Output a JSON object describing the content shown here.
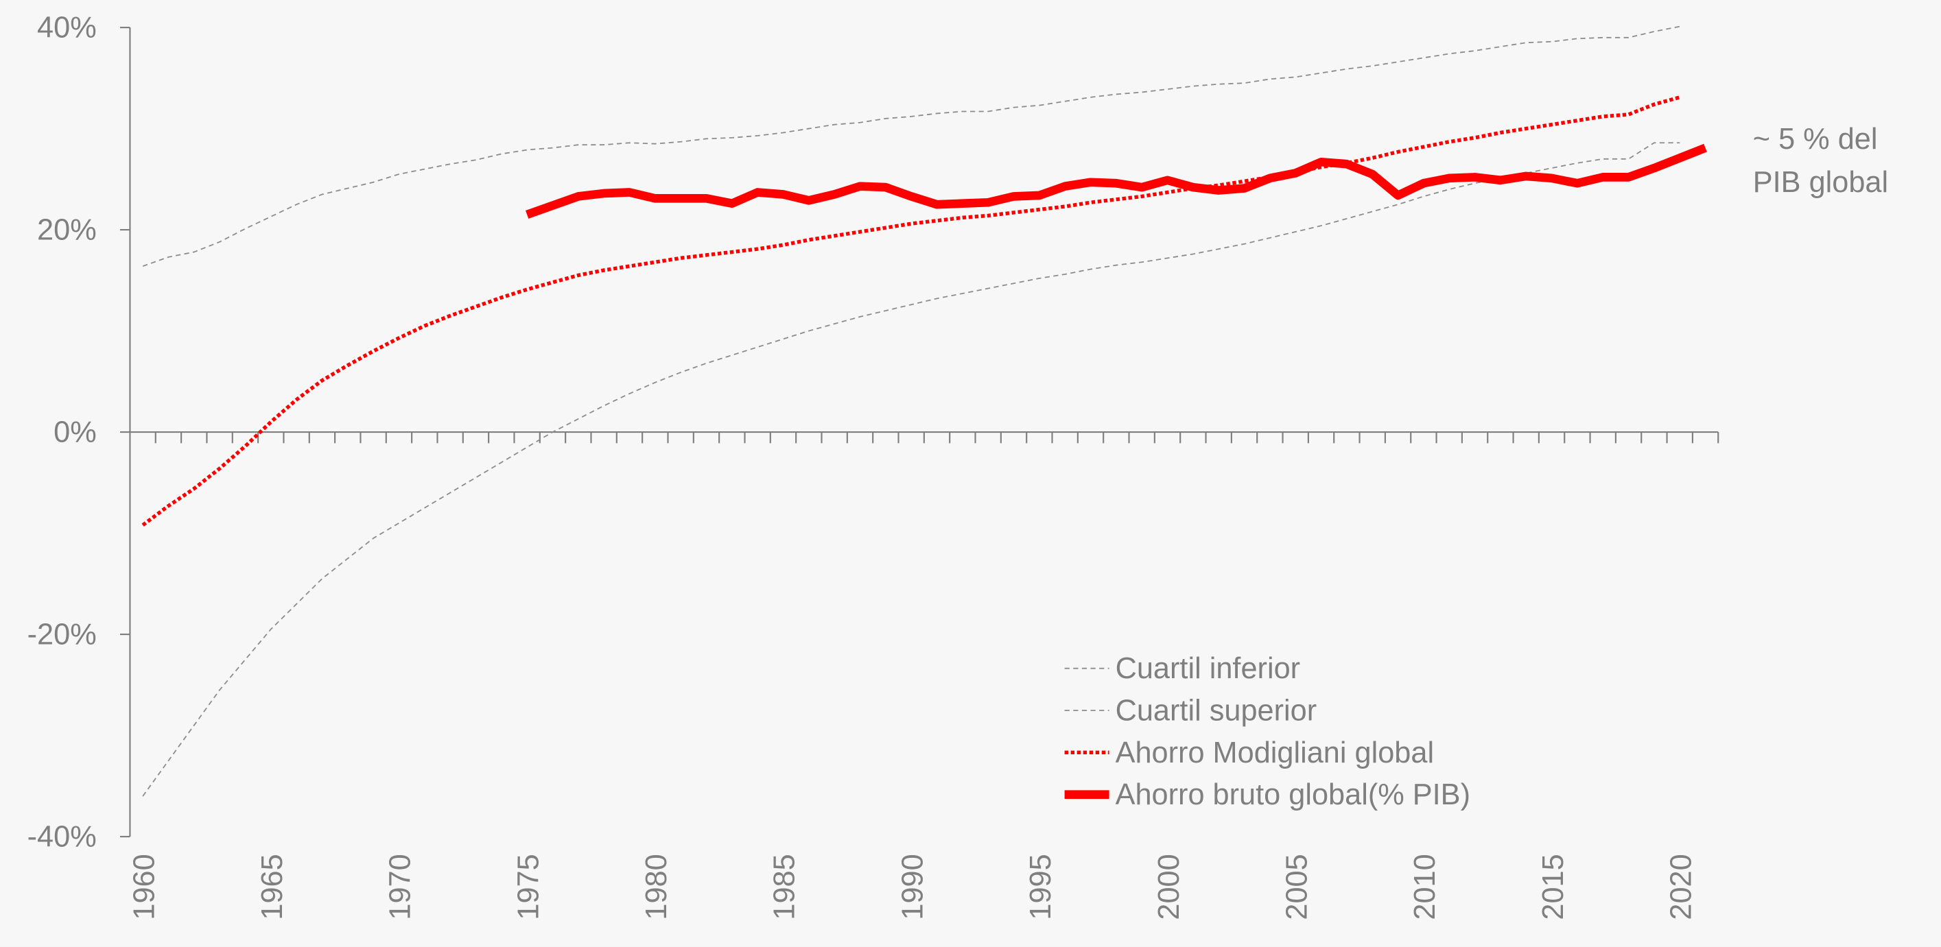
{
  "chart_data": {
    "type": "line",
    "x": [
      1960,
      1961,
      1962,
      1963,
      1964,
      1965,
      1966,
      1967,
      1968,
      1969,
      1970,
      1971,
      1972,
      1973,
      1974,
      1975,
      1976,
      1977,
      1978,
      1979,
      1980,
      1981,
      1982,
      1983,
      1984,
      1985,
      1986,
      1987,
      1988,
      1989,
      1990,
      1991,
      1992,
      1993,
      1994,
      1995,
      1996,
      1997,
      1998,
      1999,
      2000,
      2001,
      2002,
      2003,
      2004,
      2005,
      2006,
      2007,
      2008,
      2009,
      2010,
      2011,
      2012,
      2013,
      2014,
      2015,
      2016,
      2017,
      2018,
      2019,
      2020,
      2021
    ],
    "xlim": [
      1959.5,
      2021.5
    ],
    "xticks": [
      1960,
      1965,
      1970,
      1975,
      1980,
      1985,
      1990,
      1995,
      2000,
      2005,
      2010,
      2015,
      2020
    ],
    "ylim": [
      -40,
      40
    ],
    "yticks": [
      {
        "value": -40,
        "label": "-40%"
      },
      {
        "value": -20,
        "label": "-20%"
      },
      {
        "value": 0,
        "label": "0%"
      },
      {
        "value": 20,
        "label": "20%"
      },
      {
        "value": 40,
        "label": "40%"
      }
    ],
    "annotation": [
      "~ 5 % del",
      "PIB global"
    ],
    "series": [
      {
        "name": "Cuartil inferior",
        "color": "#8c8c8c",
        "dash": "dashed",
        "width": 1,
        "values": [
          -36,
          -32.5,
          -29,
          -25.5,
          -22.5,
          -19.5,
          -17,
          -14.5,
          -12.5,
          -10.5,
          -9,
          -7.5,
          -6,
          -4.5,
          -3,
          -1.5,
          0,
          1.3,
          2.6,
          3.8,
          4.9,
          5.9,
          6.8,
          7.6,
          8.4,
          9.2,
          10,
          10.7,
          11.4,
          12,
          12.6,
          13.2,
          13.7,
          14.2,
          14.7,
          15.2,
          15.6,
          16.1,
          16.5,
          16.8,
          17.2,
          17.6,
          18.1,
          18.6,
          19.2,
          19.8,
          20.4,
          21.1,
          21.8,
          22.5,
          23.3,
          24,
          24.6,
          25.1,
          25.6,
          26.1,
          26.6,
          27,
          27,
          28.6,
          28.6,
          null
        ]
      },
      {
        "name": "Cuartil superior",
        "color": "#8c8c8c",
        "dash": "dashed",
        "width": 1,
        "values": [
          16.4,
          17.3,
          17.8,
          18.8,
          20.1,
          21.3,
          22.5,
          23.5,
          24.1,
          24.7,
          25.5,
          26,
          26.5,
          26.9,
          27.5,
          27.9,
          28.1,
          28.4,
          28.4,
          28.6,
          28.5,
          28.7,
          29,
          29.1,
          29.3,
          29.6,
          30,
          30.4,
          30.6,
          31,
          31.2,
          31.5,
          31.7,
          31.7,
          32.1,
          32.3,
          32.7,
          33.1,
          33.4,
          33.6,
          33.9,
          34.2,
          34.4,
          34.5,
          34.9,
          35.1,
          35.5,
          35.9,
          36.2,
          36.6,
          37,
          37.4,
          37.7,
          38.1,
          38.5,
          38.6,
          38.9,
          39,
          39,
          39.6,
          40.1,
          null
        ]
      },
      {
        "name": "Ahorro Modigliani global",
        "color": "#ff0000",
        "dash": "dotted",
        "width": 3,
        "values": [
          -9.2,
          -7.3,
          -5.6,
          -3.6,
          -1.4,
          1,
          3.2,
          5.1,
          6.6,
          8,
          9.3,
          10.5,
          11.5,
          12.4,
          13.3,
          14.1,
          14.8,
          15.5,
          16,
          16.4,
          16.8,
          17.2,
          17.5,
          17.8,
          18.1,
          18.5,
          19,
          19.4,
          19.8,
          20.2,
          20.6,
          20.9,
          21.2,
          21.4,
          21.7,
          22,
          22.3,
          22.7,
          23,
          23.3,
          23.7,
          24.1,
          24.4,
          24.8,
          25.2,
          25.7,
          26.2,
          26.6,
          27.1,
          27.7,
          28.2,
          28.7,
          29.1,
          29.6,
          30,
          30.4,
          30.8,
          31.2,
          31.4,
          32.4,
          33.1,
          null
        ]
      },
      {
        "name": "Ahorro bruto global(% PIB)",
        "color": "#ff0000",
        "dash": "solid",
        "width": 7,
        "values": [
          null,
          null,
          null,
          null,
          null,
          null,
          null,
          null,
          null,
          null,
          null,
          null,
          null,
          null,
          null,
          21.5,
          22.4,
          23.3,
          23.6,
          23.7,
          23.1,
          23.1,
          23.1,
          22.6,
          23.7,
          23.5,
          22.9,
          23.5,
          24.3,
          24.2,
          23.3,
          22.5,
          22.6,
          22.7,
          23.3,
          23.4,
          24.3,
          24.7,
          24.6,
          24.2,
          24.9,
          24.2,
          23.9,
          24.1,
          25.1,
          25.6,
          26.7,
          26.5,
          25.5,
          23.4,
          24.6,
          25.1,
          25.2,
          24.9,
          25.3,
          25.1,
          24.6,
          25.2,
          25.2,
          26.1,
          27.1,
          28.1
        ]
      }
    ]
  }
}
